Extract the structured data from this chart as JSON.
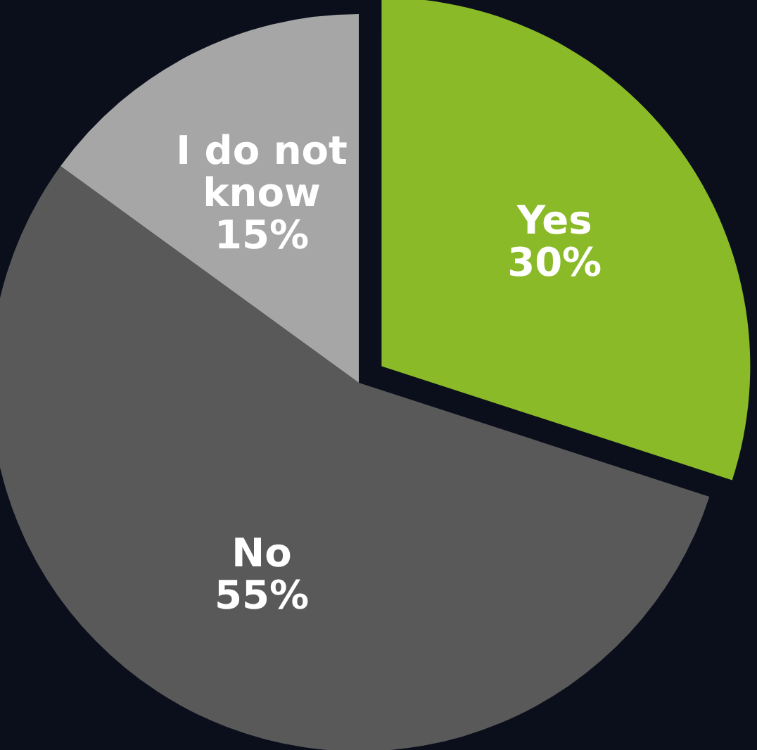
{
  "chart_data": {
    "type": "pie",
    "categories": [
      "Yes",
      "No",
      "I do not know"
    ],
    "values": [
      30,
      55,
      15
    ],
    "colors": [
      "#8aba27",
      "#595959",
      "#a6a6a6"
    ],
    "value_labels": [
      "30%",
      "55%",
      "15%"
    ]
  }
}
